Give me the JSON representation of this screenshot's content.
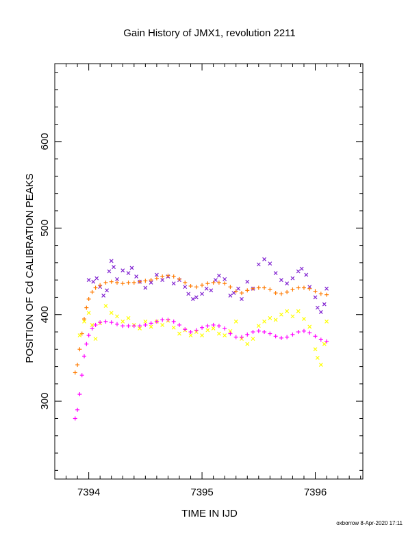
{
  "chart_data": {
    "type": "scatter",
    "title": "Gain History of JMX1, revolution 2211",
    "xlabel": "TIME IN IJD",
    "ylabel": "POSITION OF Cd CALIBRATION PEAKS",
    "xlim": [
      7393.7,
      7396.42
    ],
    "ylim": [
      210,
      690
    ],
    "x_ticks": [
      7394,
      7395,
      7396
    ],
    "x_tick_labels": [
      "7394",
      "7395",
      "7396"
    ],
    "y_ticks": [
      300,
      400,
      500,
      600
    ],
    "y_tick_labels": [
      "300",
      "400",
      "500",
      "600"
    ],
    "footer": "oxborrow  8-Apr-2020 17:11",
    "colors": {
      "purple": "#7f1fd0",
      "orange": "#ff7a00",
      "yellow": "#ffff00",
      "magenta": "#ff00ff"
    },
    "series": [
      {
        "marker": "x",
        "color": "#7f1fd0",
        "points": [
          [
            7394.0,
            440
          ],
          [
            7394.04,
            438
          ],
          [
            7394.07,
            442
          ],
          [
            7394.1,
            432
          ],
          [
            7394.13,
            422
          ],
          [
            7394.16,
            428
          ],
          [
            7394.18,
            450
          ],
          [
            7394.2,
            462
          ],
          [
            7394.22,
            455
          ],
          [
            7394.25,
            441
          ],
          [
            7394.3,
            451
          ],
          [
            7394.35,
            448
          ],
          [
            7394.38,
            454
          ],
          [
            7394.42,
            444
          ],
          [
            7394.45,
            438
          ],
          [
            7394.5,
            431
          ],
          [
            7394.55,
            437
          ],
          [
            7394.6,
            446
          ],
          [
            7394.65,
            440
          ],
          [
            7394.7,
            444
          ],
          [
            7394.75,
            436
          ],
          [
            7394.8,
            440
          ],
          [
            7394.85,
            432
          ],
          [
            7394.88,
            424
          ],
          [
            7394.92,
            418
          ],
          [
            7394.95,
            420
          ],
          [
            7395.0,
            424
          ],
          [
            7395.04,
            430
          ],
          [
            7395.08,
            428
          ],
          [
            7395.12,
            440
          ],
          [
            7395.15,
            445
          ],
          [
            7395.2,
            441
          ],
          [
            7395.25,
            422
          ],
          [
            7395.28,
            425
          ],
          [
            7395.32,
            430
          ],
          [
            7395.35,
            418
          ],
          [
            7395.4,
            438
          ],
          [
            7395.45,
            430
          ],
          [
            7395.5,
            458
          ],
          [
            7395.55,
            464
          ],
          [
            7395.6,
            459
          ],
          [
            7395.65,
            448
          ],
          [
            7395.7,
            440
          ],
          [
            7395.75,
            436
          ],
          [
            7395.8,
            442
          ],
          [
            7395.85,
            450
          ],
          [
            7395.88,
            453
          ],
          [
            7395.92,
            446
          ],
          [
            7395.95,
            432
          ],
          [
            7396.0,
            420
          ],
          [
            7396.02,
            408
          ],
          [
            7396.05,
            403
          ],
          [
            7396.08,
            412
          ],
          [
            7396.1,
            430
          ]
        ]
      },
      {
        "marker": "+",
        "color": "#ff7a00",
        "points": [
          [
            7393.88,
            333
          ],
          [
            7393.9,
            342
          ],
          [
            7393.92,
            360
          ],
          [
            7393.94,
            378
          ],
          [
            7393.96,
            395
          ],
          [
            7393.98,
            408
          ],
          [
            7394.0,
            418
          ],
          [
            7394.03,
            426
          ],
          [
            7394.06,
            431
          ],
          [
            7394.1,
            434
          ],
          [
            7394.15,
            437
          ],
          [
            7394.2,
            438
          ],
          [
            7394.25,
            437
          ],
          [
            7394.3,
            436
          ],
          [
            7394.35,
            437
          ],
          [
            7394.4,
            437
          ],
          [
            7394.45,
            438
          ],
          [
            7394.5,
            439
          ],
          [
            7394.55,
            440
          ],
          [
            7394.6,
            442
          ],
          [
            7394.65,
            444
          ],
          [
            7394.7,
            445
          ],
          [
            7394.75,
            444
          ],
          [
            7394.8,
            441
          ],
          [
            7394.85,
            437
          ],
          [
            7394.9,
            433
          ],
          [
            7394.95,
            432
          ],
          [
            7395.0,
            434
          ],
          [
            7395.05,
            436
          ],
          [
            7395.1,
            437
          ],
          [
            7395.15,
            437
          ],
          [
            7395.2,
            436
          ],
          [
            7395.25,
            432
          ],
          [
            7395.3,
            427
          ],
          [
            7395.35,
            425
          ],
          [
            7395.4,
            428
          ],
          [
            7395.45,
            430
          ],
          [
            7395.5,
            431
          ],
          [
            7395.55,
            431
          ],
          [
            7395.6,
            429
          ],
          [
            7395.65,
            425
          ],
          [
            7395.7,
            424
          ],
          [
            7395.75,
            426
          ],
          [
            7395.8,
            429
          ],
          [
            7395.85,
            431
          ],
          [
            7395.9,
            431
          ],
          [
            7395.95,
            430
          ],
          [
            7396.0,
            427
          ],
          [
            7396.05,
            424
          ],
          [
            7396.1,
            423
          ]
        ]
      },
      {
        "marker": "x",
        "color": "#ffff00",
        "points": [
          [
            7393.92,
            376
          ],
          [
            7393.96,
            392
          ],
          [
            7394.0,
            402
          ],
          [
            7394.03,
            388
          ],
          [
            7394.06,
            372
          ],
          [
            7394.1,
            390
          ],
          [
            7394.15,
            410
          ],
          [
            7394.2,
            402
          ],
          [
            7394.25,
            398
          ],
          [
            7394.3,
            392
          ],
          [
            7394.35,
            396
          ],
          [
            7394.4,
            388
          ],
          [
            7394.45,
            384
          ],
          [
            7394.5,
            392
          ],
          [
            7394.55,
            386
          ],
          [
            7394.6,
            392
          ],
          [
            7394.65,
            388
          ],
          [
            7394.7,
            393
          ],
          [
            7394.75,
            385
          ],
          [
            7394.8,
            378
          ],
          [
            7394.85,
            382
          ],
          [
            7394.9,
            376
          ],
          [
            7394.95,
            380
          ],
          [
            7395.0,
            376
          ],
          [
            7395.05,
            382
          ],
          [
            7395.1,
            384
          ],
          [
            7395.15,
            378
          ],
          [
            7395.2,
            376
          ],
          [
            7395.25,
            381
          ],
          [
            7395.3,
            392
          ],
          [
            7395.35,
            372
          ],
          [
            7395.4,
            366
          ],
          [
            7395.45,
            372
          ],
          [
            7395.5,
            387
          ],
          [
            7395.55,
            392
          ],
          [
            7395.6,
            396
          ],
          [
            7395.65,
            394
          ],
          [
            7395.7,
            400
          ],
          [
            7395.75,
            404
          ],
          [
            7395.8,
            398
          ],
          [
            7395.85,
            404
          ],
          [
            7395.9,
            395
          ],
          [
            7395.95,
            386
          ],
          [
            7396.0,
            360
          ],
          [
            7396.02,
            350
          ],
          [
            7396.05,
            342
          ],
          [
            7396.08,
            366
          ],
          [
            7396.1,
            392
          ]
        ]
      },
      {
        "marker": "+",
        "color": "#ff00ff",
        "points": [
          [
            7393.88,
            280
          ],
          [
            7393.9,
            290
          ],
          [
            7393.92,
            308
          ],
          [
            7393.94,
            330
          ],
          [
            7393.96,
            352
          ],
          [
            7393.98,
            366
          ],
          [
            7394.0,
            376
          ],
          [
            7394.03,
            384
          ],
          [
            7394.06,
            388
          ],
          [
            7394.1,
            391
          ],
          [
            7394.15,
            392
          ],
          [
            7394.2,
            391
          ],
          [
            7394.25,
            389
          ],
          [
            7394.3,
            387
          ],
          [
            7394.35,
            387
          ],
          [
            7394.4,
            387
          ],
          [
            7394.45,
            387
          ],
          [
            7394.5,
            388
          ],
          [
            7394.55,
            390
          ],
          [
            7394.6,
            392
          ],
          [
            7394.65,
            394
          ],
          [
            7394.7,
            394
          ],
          [
            7394.75,
            392
          ],
          [
            7394.8,
            388
          ],
          [
            7394.85,
            383
          ],
          [
            7394.9,
            380
          ],
          [
            7394.95,
            382
          ],
          [
            7395.0,
            385
          ],
          [
            7395.05,
            387
          ],
          [
            7395.1,
            388
          ],
          [
            7395.15,
            387
          ],
          [
            7395.2,
            384
          ],
          [
            7395.25,
            378
          ],
          [
            7395.3,
            374
          ],
          [
            7395.35,
            374
          ],
          [
            7395.4,
            377
          ],
          [
            7395.45,
            380
          ],
          [
            7395.5,
            381
          ],
          [
            7395.55,
            380
          ],
          [
            7395.6,
            378
          ],
          [
            7395.65,
            375
          ],
          [
            7395.7,
            373
          ],
          [
            7395.75,
            374
          ],
          [
            7395.8,
            377
          ],
          [
            7395.85,
            380
          ],
          [
            7395.9,
            381
          ],
          [
            7395.95,
            379
          ],
          [
            7396.0,
            375
          ],
          [
            7396.05,
            371
          ],
          [
            7396.1,
            369
          ]
        ]
      }
    ]
  }
}
